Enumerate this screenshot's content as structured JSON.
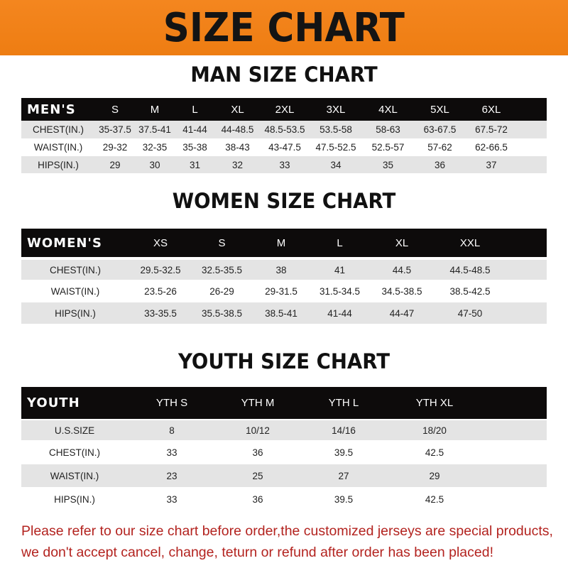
{
  "title": "SIZE CHART",
  "men": {
    "title": "MAN SIZE CHART",
    "header": [
      "MEN'S",
      "S",
      "M",
      "L",
      "XL",
      "2XL",
      "3XL",
      "4XL",
      "5XL",
      "6XL"
    ],
    "rows": [
      [
        "CHEST(IN.)",
        "35-37.5",
        "37.5-41",
        "41-44",
        "44-48.5",
        "48.5-53.5",
        "53.5-58",
        "58-63",
        "63-67.5",
        "67.5-72"
      ],
      [
        "WAIST(IN.)",
        "29-32",
        "32-35",
        "35-38",
        "38-43",
        "43-47.5",
        "47.5-52.5",
        "52.5-57",
        "57-62",
        "62-66.5"
      ],
      [
        "HIPS(IN.)",
        "29",
        "30",
        "31",
        "32",
        "33",
        "34",
        "35",
        "36",
        "37"
      ]
    ]
  },
  "women": {
    "title": "WOMEN SIZE CHART",
    "header": [
      "WOMEN'S",
      "XS",
      "S",
      "M",
      "L",
      "XL",
      "XXL"
    ],
    "rows": [
      [
        "CHEST(IN.)",
        "29.5-32.5",
        "32.5-35.5",
        "38",
        "41",
        "44.5",
        "44.5-48.5"
      ],
      [
        "WAIST(IN.)",
        "23.5-26",
        "26-29",
        "29-31.5",
        "31.5-34.5",
        "34.5-38.5",
        "38.5-42.5"
      ],
      [
        "HIPS(IN.)",
        "33-35.5",
        "35.5-38.5",
        "38.5-41",
        "41-44",
        "44-47",
        "47-50"
      ]
    ]
  },
  "youth": {
    "title": "YOUTH SIZE CHART",
    "header": [
      "YOUTH",
      "YTH S",
      "YTH M",
      "YTH L",
      "YTH XL"
    ],
    "rows": [
      [
        "U.S.SIZE",
        "8",
        "10/12",
        "14/16",
        "18/20"
      ],
      [
        "CHEST(IN.)",
        "33",
        "36",
        "39.5",
        "42.5"
      ],
      [
        "WAIST(IN.)",
        "23",
        "25",
        "27",
        "29"
      ],
      [
        "HIPS(IN.)",
        "33",
        "36",
        "39.5",
        "42.5"
      ]
    ]
  },
  "footer": {
    "line1": "Please refer to our size chart before order,the customized jerseys are special products,",
    "line2": "we don't accept cancel, change, teturn or refund after order has been placed!"
  },
  "colors": {
    "banner": "#f08020",
    "header_row": "#0d0b0b",
    "stripe": "#e4e4e4",
    "footer_text": "#b3231f"
  }
}
